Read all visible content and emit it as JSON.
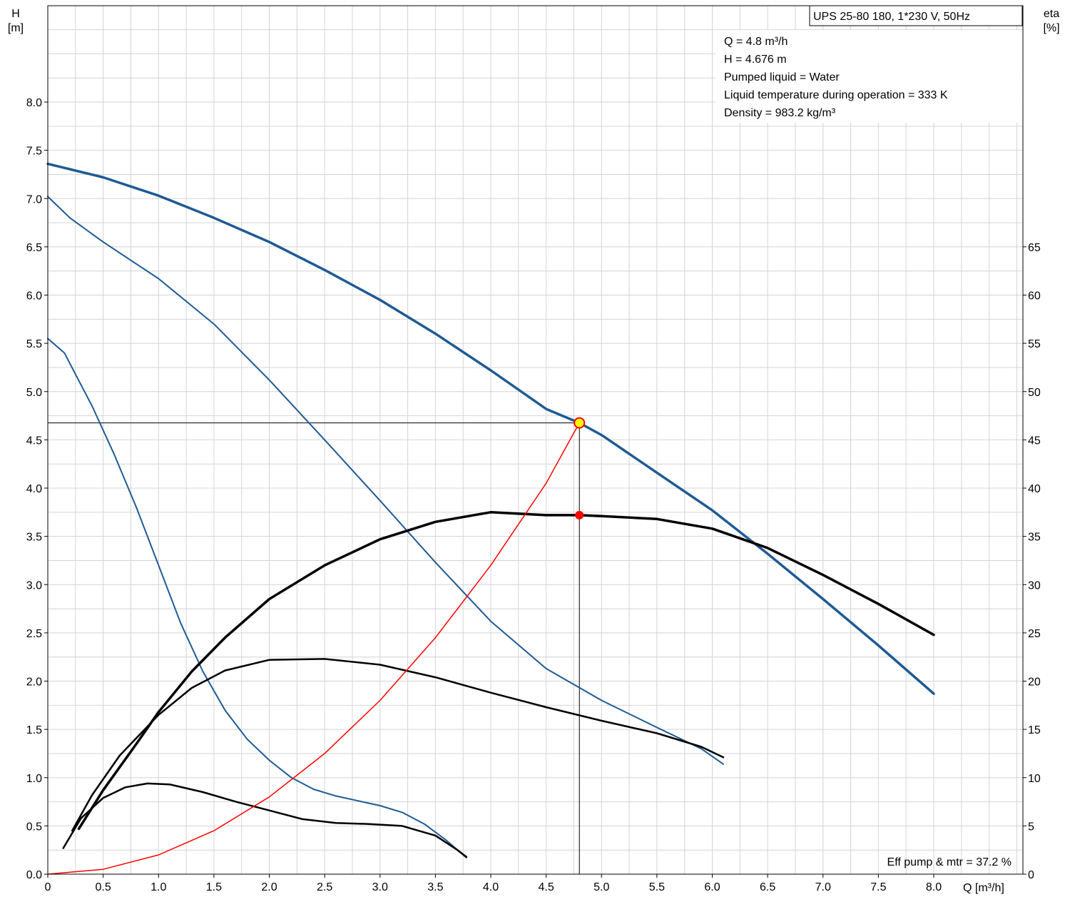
{
  "chart_data": {
    "type": "line",
    "title_box": "UPS 25-80 180, 1*230 V, 50Hz",
    "info_lines": [
      "Q = 4.8 m³/h",
      "H = 4.676 m",
      "Pumped liquid = Water",
      "Liquid temperature during operation = 333 K",
      "Density = 983.2 kg/m³"
    ],
    "footer_note": "Eff pump & mtr = 37.2 %",
    "axes": {
      "y_left_label": [
        "H",
        "[m]"
      ],
      "y_right_label": [
        "eta",
        "[%]"
      ],
      "x_label": "Q [m³/h]",
      "x_range": [
        0,
        8.8
      ],
      "y_left_range": [
        0,
        9
      ],
      "y_right_range": [
        0,
        90
      ],
      "x_ticks": [
        "0",
        "0.5",
        "1.0",
        "1.5",
        "2.0",
        "2.5",
        "3.0",
        "3.5",
        "4.0",
        "4.5",
        "5.0",
        "5.5",
        "6.0",
        "6.5",
        "7.0",
        "7.5",
        "8.0"
      ],
      "y_left_ticks": [
        "0.0",
        "0.5",
        "1.0",
        "1.5",
        "2.0",
        "2.5",
        "3.0",
        "3.5",
        "4.0",
        "4.5",
        "5.0",
        "5.5",
        "6.0",
        "6.5",
        "7.0",
        "7.5",
        "8.0"
      ],
      "y_right_ticks": [
        "0",
        "5",
        "10",
        "15",
        "20",
        "25",
        "30",
        "35",
        "40",
        "45",
        "50",
        "55",
        "60",
        "65"
      ]
    },
    "grid": true,
    "colors": {
      "head": "#1f5a94",
      "efficiency": "#000000",
      "system": "#ff0000",
      "op_point_fill": "#ffff00",
      "eff_point": "#ff0000"
    },
    "series": [
      {
        "group": "head",
        "width": 3.5,
        "x": [
          0,
          0.5,
          1.0,
          1.5,
          2.0,
          2.5,
          3.0,
          3.5,
          4.0,
          4.5,
          4.8,
          5.0,
          5.5,
          6.0,
          6.5,
          7.0,
          7.5,
          8.0
        ],
        "y": [
          7.36,
          7.22,
          7.03,
          6.8,
          6.55,
          6.26,
          5.95,
          5.6,
          5.22,
          4.82,
          4.676,
          4.55,
          4.16,
          3.77,
          3.32,
          2.85,
          2.37,
          1.87
        ]
      },
      {
        "group": "head",
        "width": 2,
        "x": [
          0,
          0.2,
          0.5,
          1.0,
          1.5,
          2.0,
          2.5,
          3.0,
          3.5,
          4.0,
          4.5,
          5.0,
          5.5,
          5.9,
          6.1
        ],
        "y": [
          7.02,
          6.8,
          6.55,
          6.17,
          5.7,
          5.12,
          4.5,
          3.87,
          3.23,
          2.62,
          2.13,
          1.8,
          1.52,
          1.3,
          1.14
        ]
      },
      {
        "group": "head",
        "width": 2,
        "x": [
          0,
          0.15,
          0.25,
          0.4,
          0.6,
          0.8,
          1.0,
          1.2,
          1.4,
          1.6,
          1.8,
          2.0,
          2.2,
          2.4,
          2.6,
          2.8,
          3.0,
          3.2,
          3.4,
          3.6,
          3.7,
          3.78
        ],
        "y": [
          5.55,
          5.4,
          5.18,
          4.85,
          4.35,
          3.8,
          3.2,
          2.6,
          2.1,
          1.7,
          1.4,
          1.18,
          1.0,
          0.88,
          0.81,
          0.76,
          0.71,
          0.64,
          0.52,
          0.35,
          0.25,
          0.17
        ]
      },
      {
        "group": "efficiency",
        "width": 3.5,
        "x": [
          0.28,
          0.5,
          0.8,
          1.0,
          1.3,
          1.6,
          2.0,
          2.5,
          3.0,
          3.5,
          4.0,
          4.5,
          4.8,
          5.0,
          5.5,
          6.0,
          6.5,
          7.0,
          7.5,
          8.0
        ],
        "y": [
          4.7,
          8.7,
          13.5,
          16.8,
          21,
          24.5,
          28.5,
          32,
          34.7,
          36.5,
          37.5,
          37.2,
          37.2,
          37.1,
          36.8,
          35.8,
          33.8,
          31,
          28,
          24.8
        ]
      },
      {
        "group": "efficiency",
        "width": 2.5,
        "x": [
          0.22,
          0.4,
          0.65,
          1.0,
          1.3,
          1.6,
          2.0,
          2.5,
          3.0,
          3.5,
          4.0,
          4.5,
          5.0,
          5.5,
          5.9,
          6.1
        ],
        "y": [
          4.5,
          8.2,
          12.3,
          16.5,
          19.3,
          21.1,
          22.2,
          22.3,
          21.7,
          20.4,
          18.8,
          17.3,
          15.9,
          14.6,
          13.2,
          12.1
        ]
      },
      {
        "group": "efficiency",
        "width": 2.5,
        "x": [
          0.14,
          0.3,
          0.5,
          0.7,
          0.9,
          1.1,
          1.4,
          1.7,
          2.0,
          2.3,
          2.6,
          2.9,
          3.2,
          3.5,
          3.7,
          3.78
        ],
        "y": [
          2.7,
          5.8,
          7.9,
          9.0,
          9.4,
          9.3,
          8.5,
          7.5,
          6.6,
          5.7,
          5.3,
          5.2,
          5.0,
          4.0,
          2.5,
          1.8
        ]
      },
      {
        "group": "system",
        "width": 1.5,
        "x": [
          0,
          0.5,
          1.0,
          1.5,
          2.0,
          2.5,
          3.0,
          3.5,
          4.0,
          4.5,
          4.8
        ],
        "y": [
          0,
          0.05,
          0.2,
          0.45,
          0.8,
          1.25,
          1.8,
          2.45,
          3.2,
          4.05,
          4.676
        ]
      }
    ],
    "operating_point": {
      "q": 4.8,
      "h": 4.676,
      "eff_pct": 37.2
    }
  }
}
